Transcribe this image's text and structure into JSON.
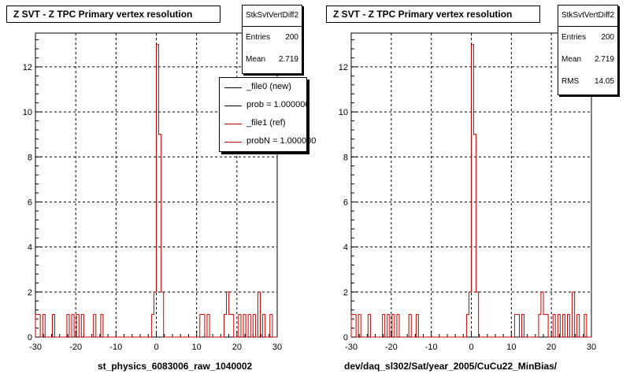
{
  "colors": {
    "new": "#000000",
    "ref": "#cc0000"
  },
  "chart_data": [
    {
      "type": "step-histogram",
      "title": "Z SVT - Z TPC Primary vertex resolution",
      "xlabel": "st_physics_6083006_raw_1040002",
      "ylabel": "",
      "xlim": [
        -30,
        30
      ],
      "ylim": [
        0,
        13.5
      ],
      "grid": true,
      "x_ticks": [
        -30,
        -20,
        -10,
        0,
        10,
        20,
        30
      ],
      "y_ticks": [
        0,
        2,
        4,
        6,
        8,
        10,
        12
      ],
      "bin_width": 0.6,
      "bins": [
        {
          "x": -30.0,
          "count": 1
        },
        {
          "x": -29.4,
          "count": 1
        },
        {
          "x": -28.2,
          "count": 1
        },
        {
          "x": -25.8,
          "count": 1
        },
        {
          "x": -22.2,
          "count": 1
        },
        {
          "x": -21.0,
          "count": 1
        },
        {
          "x": -19.8,
          "count": 1
        },
        {
          "x": -18.6,
          "count": 1
        },
        {
          "x": -15.6,
          "count": 1
        },
        {
          "x": -13.8,
          "count": 1
        },
        {
          "x": -1.2,
          "count": 1
        },
        {
          "x": -0.6,
          "count": 2
        },
        {
          "x": 0.0,
          "count": 13
        },
        {
          "x": 0.6,
          "count": 9
        },
        {
          "x": 1.2,
          "count": 2
        },
        {
          "x": 10.8,
          "count": 1
        },
        {
          "x": 11.4,
          "count": 1
        },
        {
          "x": 12.6,
          "count": 1
        },
        {
          "x": 16.8,
          "count": 1
        },
        {
          "x": 17.4,
          "count": 2
        },
        {
          "x": 18.0,
          "count": 1
        },
        {
          "x": 18.6,
          "count": 1
        },
        {
          "x": 20.4,
          "count": 1
        },
        {
          "x": 21.6,
          "count": 1
        },
        {
          "x": 22.8,
          "count": 1
        },
        {
          "x": 24.0,
          "count": 1
        },
        {
          "x": 25.2,
          "count": 2
        },
        {
          "x": 26.4,
          "count": 1
        },
        {
          "x": 28.2,
          "count": 1
        }
      ],
      "stats": {
        "name": "StkSvtVertDiff2",
        "entries_label": "Entries",
        "entries": "200",
        "mean_label": "Mean",
        "mean": "2.719"
      },
      "legend": {
        "placement": "top-right",
        "entries": [
          {
            "label": "_file0 (new)",
            "color": "#000000"
          },
          {
            "label": "prob = 1.000000",
            "color": "#000000"
          },
          {
            "label": "_file1 (ref)",
            "color": "#cc0000"
          },
          {
            "label": "probN = 1.000000",
            "color": "#cc0000"
          }
        ]
      }
    },
    {
      "type": "step-histogram",
      "title": "Z SVT - Z TPC Primary vertex resolution",
      "xlabel": "dev/daq_sl302/Sat/year_2005/CuCu22_MinBias/",
      "ylabel": "",
      "xlim": [
        -30,
        30
      ],
      "ylim": [
        0,
        13.5
      ],
      "grid": true,
      "x_ticks": [
        -30,
        -20,
        -10,
        0,
        10,
        20,
        30
      ],
      "y_ticks": [
        0,
        2,
        4,
        6,
        8,
        10,
        12
      ],
      "bin_width": 0.6,
      "bins": [
        {
          "x": -30.0,
          "count": 1
        },
        {
          "x": -29.4,
          "count": 1
        },
        {
          "x": -28.2,
          "count": 1
        },
        {
          "x": -25.8,
          "count": 1
        },
        {
          "x": -22.2,
          "count": 1
        },
        {
          "x": -21.0,
          "count": 1
        },
        {
          "x": -19.8,
          "count": 1
        },
        {
          "x": -18.6,
          "count": 1
        },
        {
          "x": -15.6,
          "count": 1
        },
        {
          "x": -13.8,
          "count": 1
        },
        {
          "x": -1.2,
          "count": 1
        },
        {
          "x": -0.6,
          "count": 2
        },
        {
          "x": 0.0,
          "count": 13
        },
        {
          "x": 0.6,
          "count": 9
        },
        {
          "x": 1.2,
          "count": 2
        },
        {
          "x": 10.8,
          "count": 1
        },
        {
          "x": 11.4,
          "count": 1
        },
        {
          "x": 12.6,
          "count": 1
        },
        {
          "x": 16.8,
          "count": 1
        },
        {
          "x": 17.4,
          "count": 2
        },
        {
          "x": 18.0,
          "count": 1
        },
        {
          "x": 18.6,
          "count": 1
        },
        {
          "x": 20.4,
          "count": 1
        },
        {
          "x": 21.6,
          "count": 1
        },
        {
          "x": 22.8,
          "count": 1
        },
        {
          "x": 24.0,
          "count": 1
        },
        {
          "x": 25.2,
          "count": 2
        },
        {
          "x": 26.4,
          "count": 1
        },
        {
          "x": 28.2,
          "count": 1
        }
      ],
      "stats": {
        "name": "StkSvtVertDiff2",
        "entries_label": "Entries",
        "entries": "200",
        "mean_label": "Mean",
        "mean": "2.719",
        "rms_label": "RMS",
        "rms": "14.05"
      }
    }
  ]
}
